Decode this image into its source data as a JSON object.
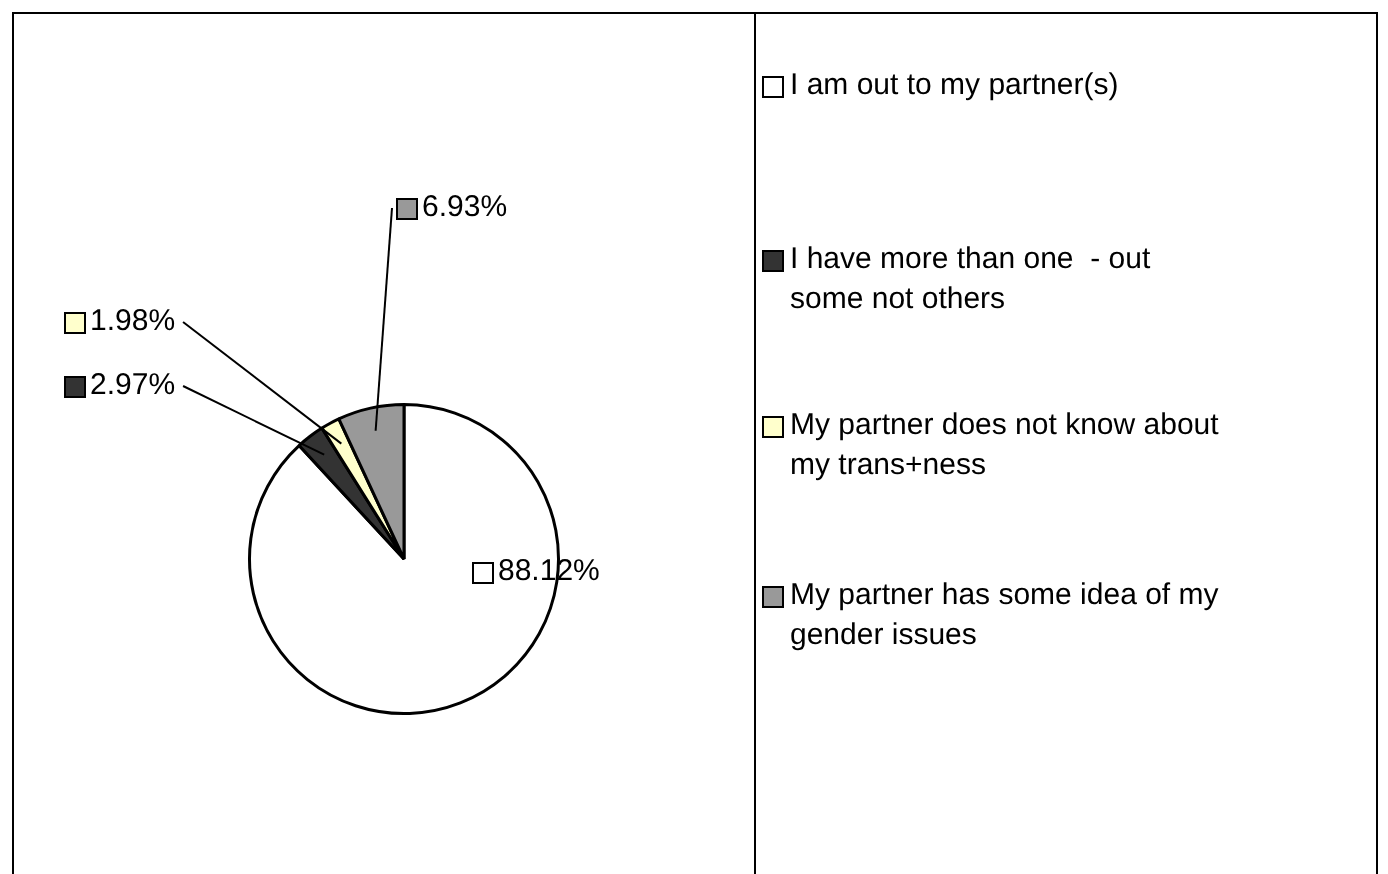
{
  "chart_data": {
    "type": "pie",
    "categories": [
      "I am out to my partner(s)",
      "I have more than one  - out some not others",
      "My partner does not know about my trans+ness",
      "My partner has some idea of my gender issues"
    ],
    "values": [
      88.12,
      2.97,
      1.98,
      6.93
    ],
    "colors": [
      "#ffffff",
      "#333333",
      "#ffffcc",
      "#999999"
    ],
    "value_labels": [
      "88.12%",
      "2.97%",
      "1.98%",
      "6.93%"
    ],
    "legend": "right"
  }
}
